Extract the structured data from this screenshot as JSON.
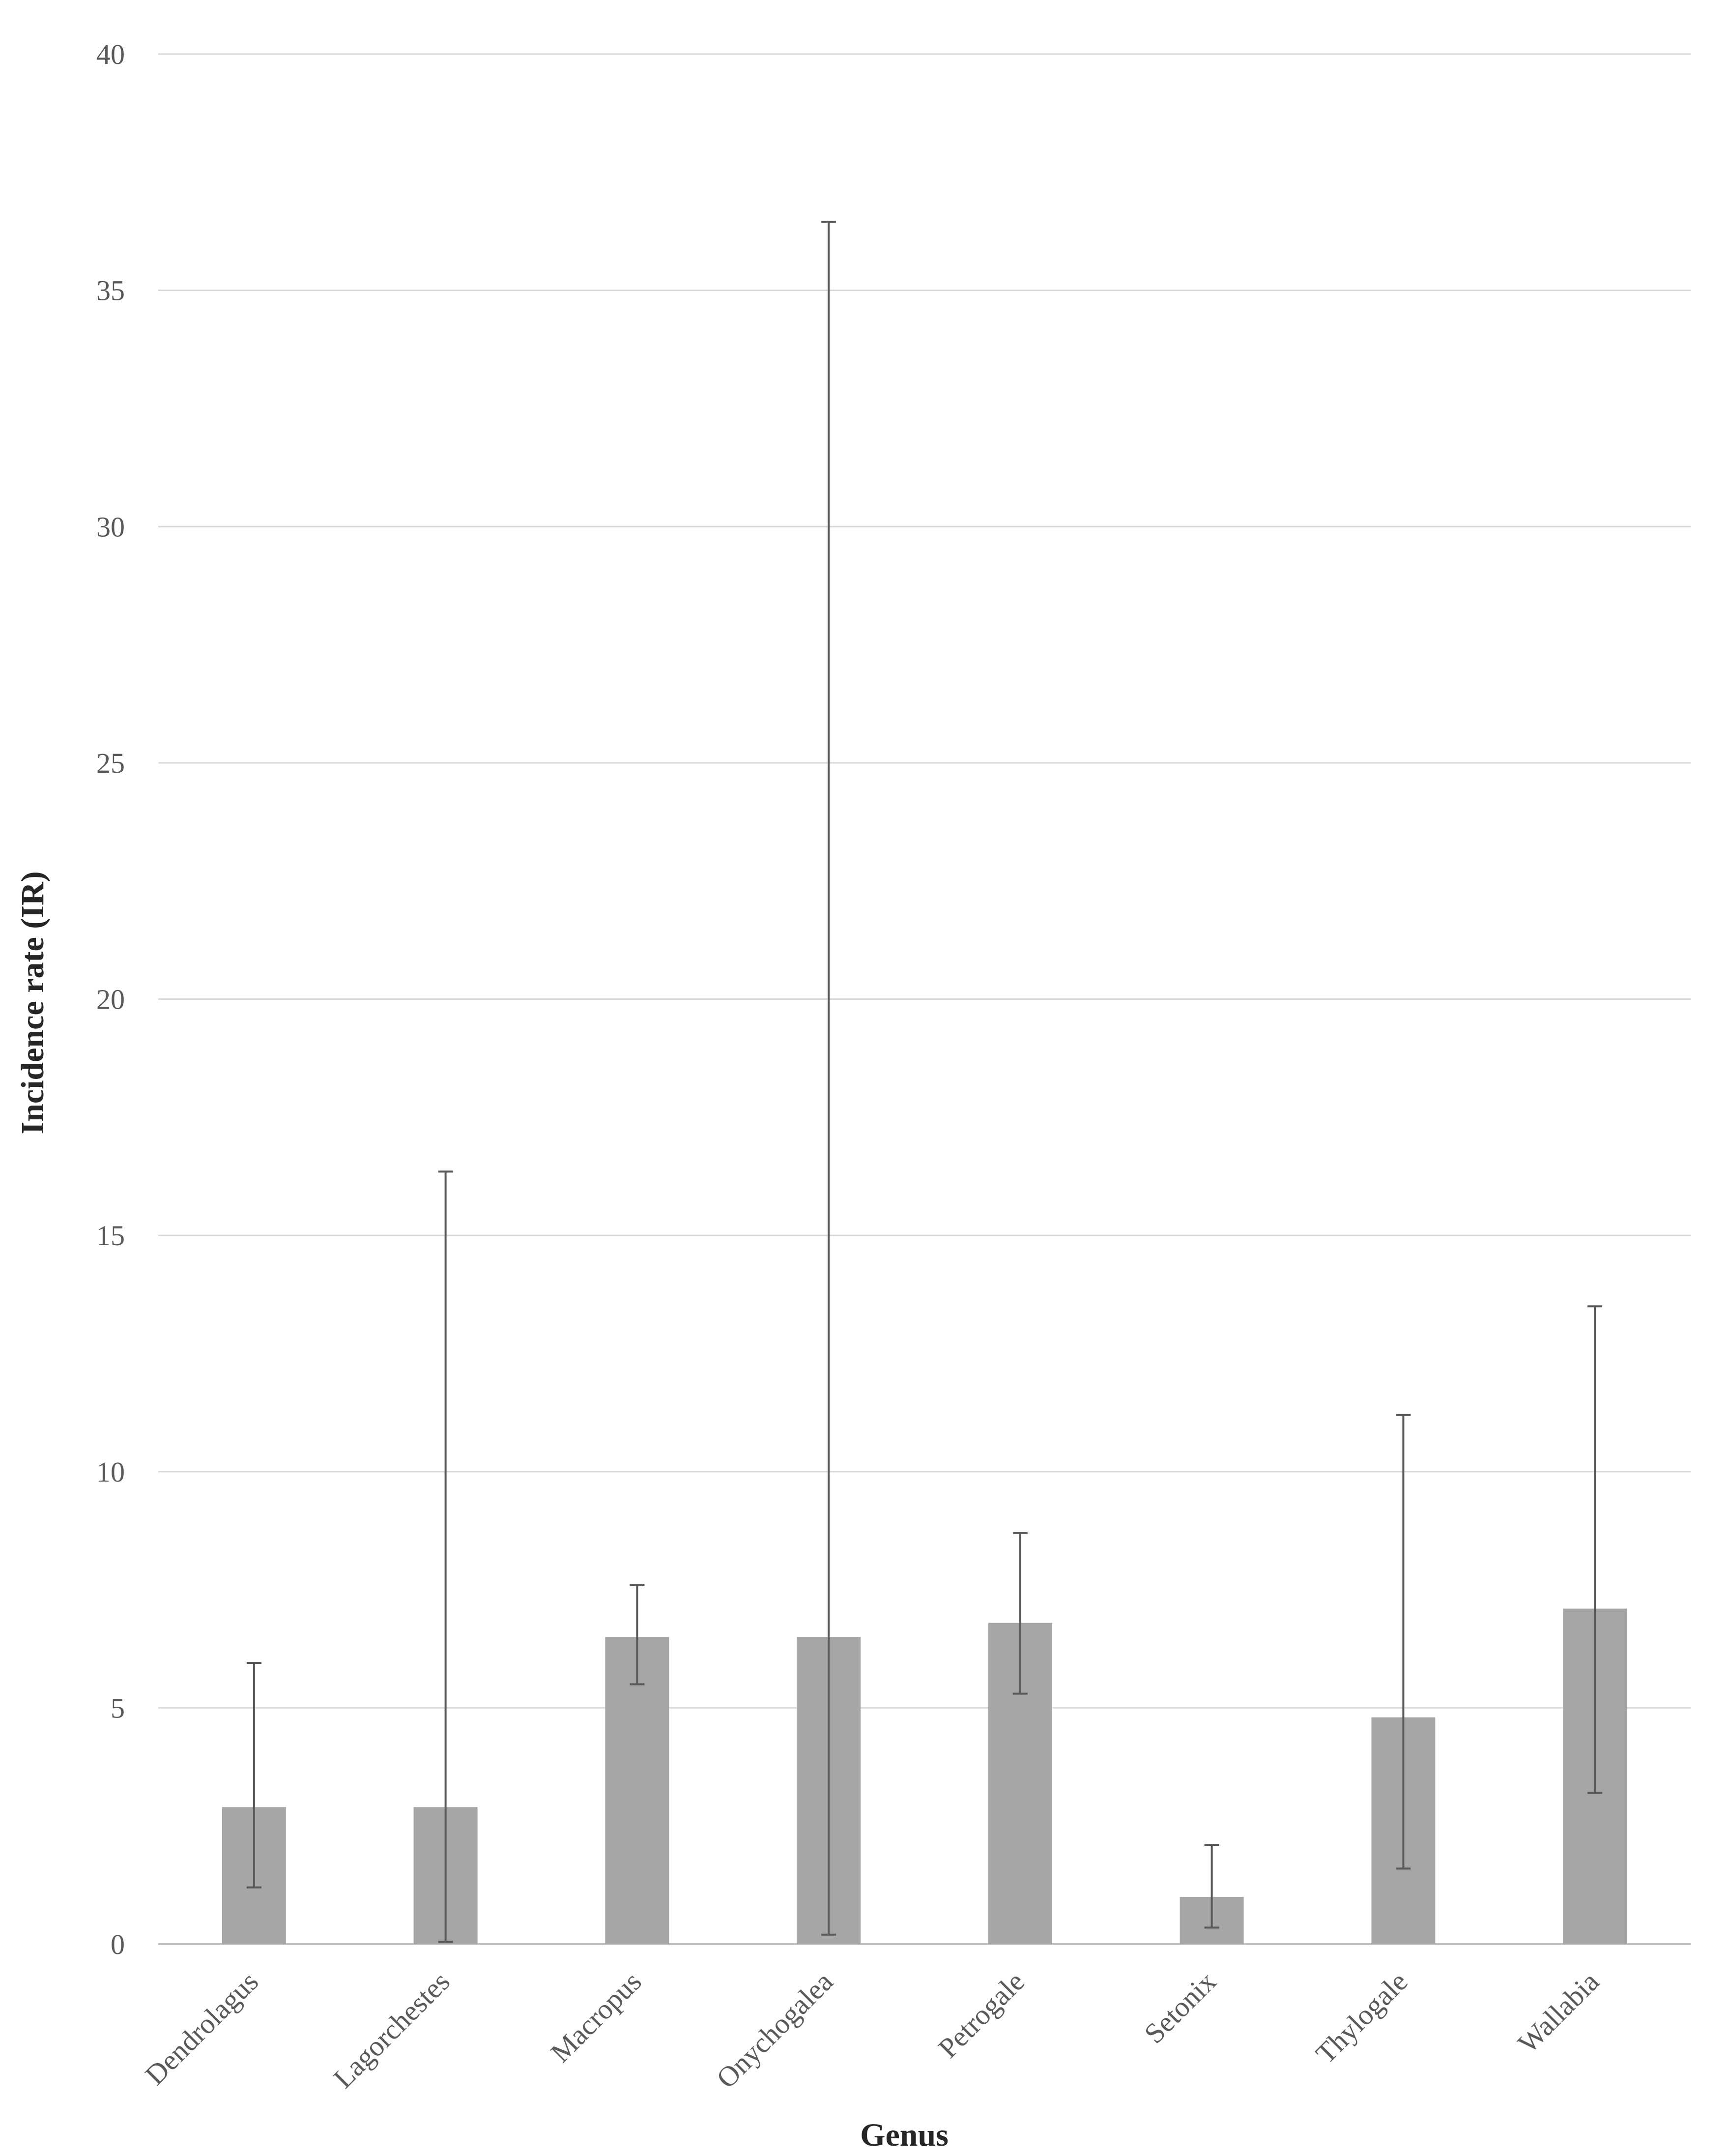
{
  "chart_data": {
    "type": "bar",
    "xlabel": "Genus",
    "ylabel": "Incidence rate (IR)",
    "ylim": [
      0,
      40
    ],
    "yticks": [
      0,
      5,
      10,
      15,
      20,
      25,
      30,
      35,
      40
    ],
    "grid": true,
    "categories": [
      "Dendrolagus",
      "Lagorchestes",
      "Macropus",
      "Onychogalea",
      "Petrogale",
      "Setonix",
      "Thylogale",
      "Wallabia"
    ],
    "values": [
      2.9,
      2.9,
      6.5,
      6.5,
      6.8,
      1.0,
      4.8,
      7.1
    ],
    "error_low": [
      1.2,
      0.05,
      5.5,
      0.2,
      5.3,
      0.35,
      1.6,
      3.2
    ],
    "error_high": [
      5.95,
      16.35,
      7.6,
      36.45,
      8.7,
      2.1,
      11.2,
      13.5
    ],
    "colors": {
      "bar": "#a6a6a6",
      "error_bar": "#595959",
      "grid": "#d9d9d9",
      "axis": "#bfbfbf"
    }
  }
}
